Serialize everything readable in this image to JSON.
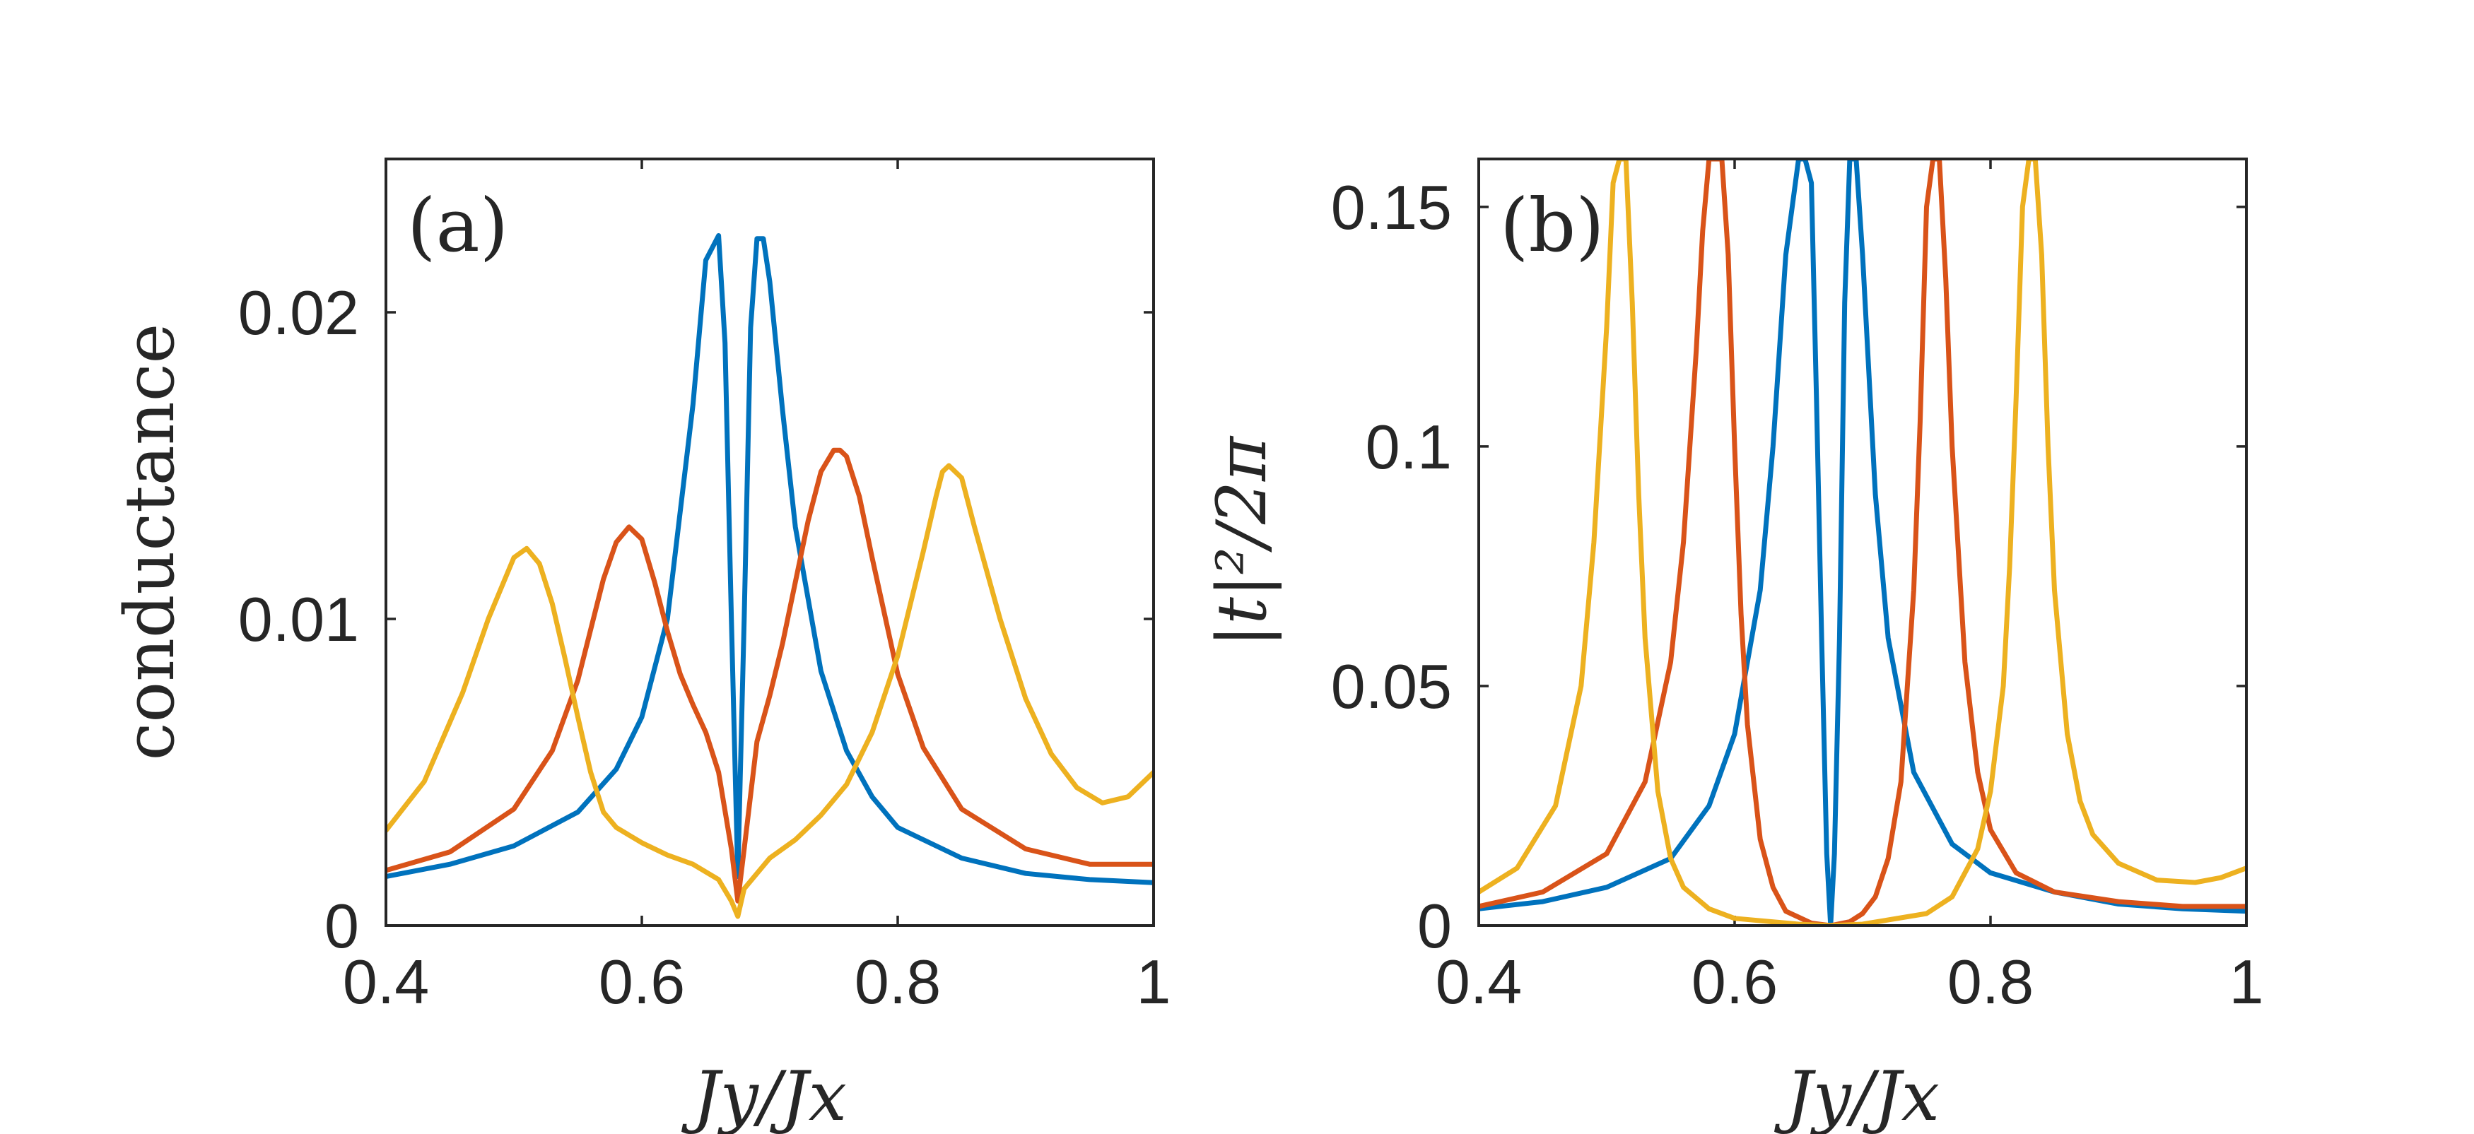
{
  "chart_data": [
    {
      "type": "line",
      "panel_label": "(a)",
      "xlabel": "Jy/Jx",
      "ylabel": "conductance",
      "xlim": [
        0.4,
        1.0
      ],
      "ylim": [
        0,
        0.025
      ],
      "xticks": [
        0.4,
        0.6,
        0.8,
        1.0
      ],
      "xtick_labels": [
        "0.4",
        "0.6",
        "0.8",
        "1"
      ],
      "yticks": [
        0,
        0.01,
        0.02
      ],
      "ytick_labels": [
        "0",
        "0.01",
        "0.02"
      ],
      "series": [
        {
          "name": "blue",
          "color": "#0072BD",
          "x": [
            0.4,
            0.45,
            0.5,
            0.55,
            0.58,
            0.6,
            0.62,
            0.64,
            0.65,
            0.66,
            0.665,
            0.67,
            0.673,
            0.675,
            0.677,
            0.68,
            0.685,
            0.69,
            0.695,
            0.7,
            0.71,
            0.72,
            0.74,
            0.76,
            0.78,
            0.8,
            0.85,
            0.9,
            0.95,
            1.0
          ],
          "y": [
            0.0016,
            0.002,
            0.0026,
            0.0037,
            0.0051,
            0.0068,
            0.01,
            0.017,
            0.0217,
            0.0225,
            0.019,
            0.01,
            0.005,
            0.0016,
            0.005,
            0.01,
            0.0195,
            0.0224,
            0.0224,
            0.021,
            0.0168,
            0.013,
            0.0083,
            0.0057,
            0.0042,
            0.0032,
            0.0022,
            0.0017,
            0.0015,
            0.0014
          ]
        },
        {
          "name": "orange",
          "color": "#D95319",
          "x": [
            0.4,
            0.45,
            0.5,
            0.53,
            0.55,
            0.57,
            0.58,
            0.59,
            0.6,
            0.61,
            0.62,
            0.63,
            0.64,
            0.65,
            0.66,
            0.67,
            0.675,
            0.68,
            0.69,
            0.7,
            0.71,
            0.72,
            0.73,
            0.74,
            0.75,
            0.755,
            0.76,
            0.77,
            0.78,
            0.8,
            0.82,
            0.85,
            0.9,
            0.95,
            1.0
          ],
          "y": [
            0.0018,
            0.0024,
            0.0038,
            0.0057,
            0.008,
            0.0113,
            0.0125,
            0.013,
            0.0126,
            0.0112,
            0.0096,
            0.0082,
            0.0072,
            0.0063,
            0.005,
            0.0025,
            0.0008,
            0.0025,
            0.006,
            0.0075,
            0.0092,
            0.0112,
            0.0132,
            0.0148,
            0.0155,
            0.0155,
            0.0153,
            0.014,
            0.012,
            0.0082,
            0.0058,
            0.0038,
            0.0025,
            0.002,
            0.002
          ]
        },
        {
          "name": "yellow",
          "color": "#EDB120",
          "x": [
            0.4,
            0.43,
            0.46,
            0.48,
            0.5,
            0.51,
            0.52,
            0.53,
            0.54,
            0.55,
            0.56,
            0.57,
            0.58,
            0.6,
            0.62,
            0.64,
            0.66,
            0.67,
            0.675,
            0.68,
            0.7,
            0.72,
            0.74,
            0.76,
            0.78,
            0.8,
            0.82,
            0.83,
            0.835,
            0.84,
            0.85,
            0.86,
            0.88,
            0.9,
            0.92,
            0.94,
            0.96,
            0.98,
            1.0
          ],
          "y": [
            0.0031,
            0.0047,
            0.0076,
            0.01,
            0.012,
            0.0123,
            0.0118,
            0.0105,
            0.0087,
            0.0068,
            0.005,
            0.0037,
            0.0032,
            0.0027,
            0.0023,
            0.002,
            0.0015,
            0.0008,
            0.0003,
            0.0012,
            0.0022,
            0.0028,
            0.0036,
            0.0046,
            0.0063,
            0.0088,
            0.0122,
            0.014,
            0.0148,
            0.015,
            0.0146,
            0.013,
            0.01,
            0.0074,
            0.0056,
            0.0045,
            0.004,
            0.0042,
            0.005
          ]
        }
      ]
    },
    {
      "type": "line",
      "panel_label": "(b)",
      "xlabel": "Jy/Jx",
      "ylabel": "|t|²/2π",
      "xlim": [
        0.4,
        1.0
      ],
      "ylim": [
        0,
        0.16
      ],
      "xticks": [
        0.4,
        0.6,
        0.8,
        1.0
      ],
      "xtick_labels": [
        "0.4",
        "0.6",
        "0.8",
        "1"
      ],
      "yticks": [
        0,
        0.05,
        0.1,
        0.15
      ],
      "ytick_labels": [
        "0",
        "0.05",
        "0.1",
        "0.15"
      ],
      "series": [
        {
          "name": "blue",
          "color": "#0072BD",
          "x": [
            0.4,
            0.45,
            0.5,
            0.55,
            0.58,
            0.6,
            0.62,
            0.63,
            0.64,
            0.65,
            0.655,
            0.66,
            0.664,
            0.668,
            0.672,
            0.675,
            0.678,
            0.682,
            0.686,
            0.69,
            0.695,
            0.7,
            0.71,
            0.72,
            0.74,
            0.77,
            0.8,
            0.85,
            0.9,
            0.95,
            1.0
          ],
          "y": [
            0.0035,
            0.005,
            0.008,
            0.014,
            0.025,
            0.04,
            0.07,
            0.1,
            0.14,
            0.16,
            0.16,
            0.155,
            0.11,
            0.06,
            0.015,
            0.0,
            0.015,
            0.06,
            0.13,
            0.16,
            0.16,
            0.14,
            0.09,
            0.06,
            0.032,
            0.017,
            0.011,
            0.007,
            0.0045,
            0.0035,
            0.003
          ]
        },
        {
          "name": "orange",
          "color": "#D95319",
          "x": [
            0.4,
            0.45,
            0.5,
            0.53,
            0.55,
            0.56,
            0.57,
            0.575,
            0.58,
            0.585,
            0.59,
            0.595,
            0.6,
            0.605,
            0.61,
            0.62,
            0.63,
            0.64,
            0.66,
            0.675,
            0.69,
            0.7,
            0.71,
            0.72,
            0.73,
            0.74,
            0.745,
            0.75,
            0.755,
            0.76,
            0.765,
            0.77,
            0.78,
            0.79,
            0.8,
            0.82,
            0.85,
            0.9,
            0.95,
            1.0
          ],
          "y": [
            0.004,
            0.007,
            0.015,
            0.03,
            0.055,
            0.08,
            0.12,
            0.145,
            0.16,
            0.16,
            0.16,
            0.14,
            0.1,
            0.065,
            0.042,
            0.018,
            0.008,
            0.003,
            0.0005,
            0.0,
            0.0008,
            0.0025,
            0.006,
            0.014,
            0.03,
            0.07,
            0.105,
            0.15,
            0.16,
            0.16,
            0.135,
            0.1,
            0.055,
            0.032,
            0.02,
            0.011,
            0.007,
            0.005,
            0.004,
            0.004
          ]
        },
        {
          "name": "yellow",
          "color": "#EDB120",
          "x": [
            0.4,
            0.43,
            0.46,
            0.48,
            0.49,
            0.5,
            0.505,
            0.51,
            0.515,
            0.52,
            0.525,
            0.53,
            0.54,
            0.55,
            0.56,
            0.58,
            0.6,
            0.65,
            0.675,
            0.7,
            0.75,
            0.77,
            0.79,
            0.8,
            0.81,
            0.815,
            0.82,
            0.825,
            0.83,
            0.835,
            0.84,
            0.845,
            0.85,
            0.86,
            0.87,
            0.88,
            0.9,
            0.93,
            0.96,
            0.98,
            1.0
          ],
          "y": [
            0.007,
            0.012,
            0.025,
            0.05,
            0.08,
            0.125,
            0.155,
            0.16,
            0.16,
            0.13,
            0.09,
            0.06,
            0.028,
            0.014,
            0.008,
            0.0035,
            0.0015,
            0.0003,
            0.0,
            0.0003,
            0.0025,
            0.006,
            0.016,
            0.028,
            0.05,
            0.075,
            0.11,
            0.15,
            0.16,
            0.16,
            0.14,
            0.1,
            0.07,
            0.04,
            0.026,
            0.019,
            0.013,
            0.0095,
            0.009,
            0.01,
            0.012
          ]
        }
      ]
    }
  ]
}
